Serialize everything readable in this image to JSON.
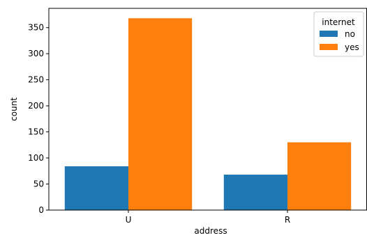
{
  "chart_data": {
    "type": "bar",
    "title": "",
    "xlabel": "address",
    "ylabel": "count",
    "categories": [
      "U",
      "R"
    ],
    "series": [
      {
        "name": "no",
        "values": [
          84,
          68
        ],
        "color": "#1f77b4"
      },
      {
        "name": "yes",
        "values": [
          368,
          130
        ],
        "color": "#ff7f0e"
      }
    ],
    "ylim": [
      0,
      387
    ],
    "yticks": [
      0,
      50,
      100,
      150,
      200,
      250,
      300,
      350
    ],
    "grid": false,
    "legend": {
      "title": "internet",
      "placement": "top-right"
    }
  }
}
